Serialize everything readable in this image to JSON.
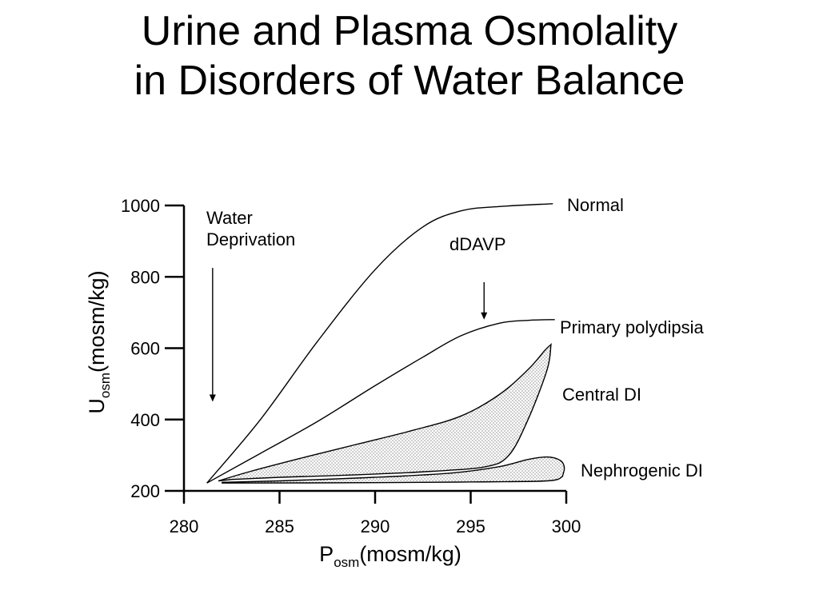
{
  "title_line1": "Urine and Plasma Osmolality",
  "title_line2": "in Disorders of Water Balance",
  "chart_data": {
    "type": "line",
    "title": "Urine and Plasma Osmolality in Disorders of Water Balance",
    "xlabel": {
      "main": "P",
      "sub": "osm",
      "unit": "(mosm/kg)"
    },
    "ylabel": {
      "main": "U",
      "sub": "osm",
      "unit": "(mosm/kg)"
    },
    "xlim": [
      280,
      300
    ],
    "ylim": [
      200,
      1000
    ],
    "x_ticks": [
      280,
      285,
      290,
      295,
      300
    ],
    "x_tick_labels": [
      "280",
      "285",
      "290",
      "295",
      "300"
    ],
    "y_ticks": [
      200,
      400,
      600,
      800,
      1000
    ],
    "y_tick_labels": [
      "200",
      "400",
      "600",
      "800",
      "1000"
    ],
    "grid": false,
    "legend": "none",
    "series": [
      {
        "name": "Normal",
        "kind": "line",
        "points": [
          [
            281.2,
            222
          ],
          [
            284,
            400
          ],
          [
            287,
            620
          ],
          [
            290,
            820
          ],
          [
            292.5,
            940
          ],
          [
            294.5,
            985
          ],
          [
            296.5,
            997
          ],
          [
            299.3,
            1005
          ]
        ]
      },
      {
        "name": "Primary polydipsia",
        "kind": "line",
        "points": [
          [
            281.2,
            222
          ],
          [
            284,
            305
          ],
          [
            287,
            395
          ],
          [
            290,
            495
          ],
          [
            292.5,
            575
          ],
          [
            294.5,
            635
          ],
          [
            296.5,
            670
          ],
          [
            298,
            678
          ],
          [
            299.4,
            680
          ]
        ]
      },
      {
        "name": "Central DI",
        "kind": "band",
        "upper": [
          [
            281.8,
            228
          ],
          [
            283.5,
            255
          ],
          [
            286,
            290
          ],
          [
            289,
            330
          ],
          [
            292,
            370
          ],
          [
            294.5,
            410
          ],
          [
            296.5,
            470
          ],
          [
            298,
            540
          ],
          [
            298.9,
            595
          ],
          [
            299.2,
            610
          ]
        ],
        "lower": [
          [
            282.5,
            232
          ],
          [
            285,
            238
          ],
          [
            289,
            245
          ],
          [
            293,
            255
          ],
          [
            295.8,
            268
          ],
          [
            297,
            300
          ],
          [
            298,
            400
          ],
          [
            299,
            540
          ],
          [
            299.2,
            610
          ]
        ]
      },
      {
        "name": "Nephrogenic DI",
        "kind": "band",
        "upper": [
          [
            282,
            224
          ],
          [
            285,
            228
          ],
          [
            290,
            238
          ],
          [
            294,
            250
          ],
          [
            296.5,
            268
          ],
          [
            298,
            288
          ],
          [
            299,
            295
          ],
          [
            299.7,
            285
          ],
          [
            299.9,
            265
          ],
          [
            299.8,
            240
          ]
        ],
        "lower": [
          [
            282,
            222
          ],
          [
            290,
            223
          ],
          [
            295,
            225
          ],
          [
            299,
            228
          ],
          [
            299.8,
            240
          ]
        ]
      }
    ],
    "annotations": [
      {
        "text_lines": [
          "Water",
          "Deprivation"
        ],
        "arrow": {
          "x": 281.5,
          "from_y": 825,
          "to_y": 450
        }
      },
      {
        "text_lines": [
          "dDAVP"
        ],
        "arrow": {
          "x": 295.7,
          "from_y": 785,
          "to_y": 680
        }
      }
    ],
    "curve_labels": [
      "Normal",
      "Primary polydipsia",
      "Central DI",
      "Nephrogenic DI"
    ]
  }
}
